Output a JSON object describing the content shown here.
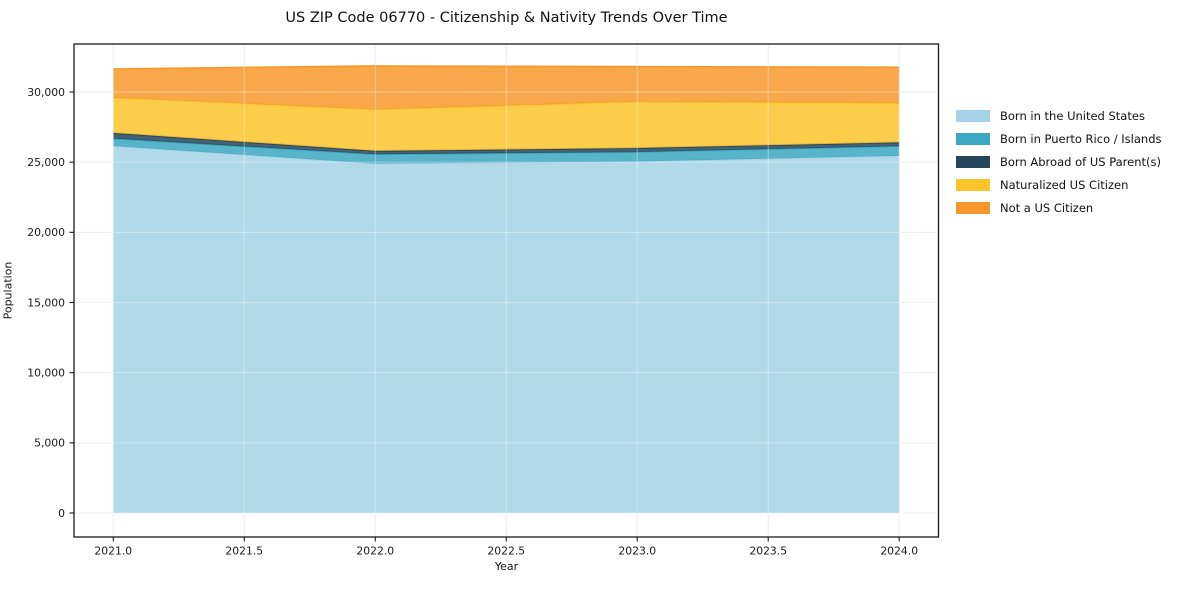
{
  "title": "US ZIP Code 06770 - Citizenship & Nativity Trends Over Time",
  "xlabel": "Year",
  "ylabel": "Population",
  "colors": {
    "background": "#ffffff",
    "grid": "#e7e7e7",
    "axis_frame": "#1a1a1a",
    "tick_text": "#1a1a1a"
  },
  "chart_data": {
    "type": "area",
    "stacked": true,
    "title": "US ZIP Code 06770 - Citizenship & Nativity Trends Over Time",
    "xlabel": "Year",
    "ylabel": "Population",
    "grid": true,
    "legend_position": "right-outside",
    "x": [
      2021,
      2022,
      2023,
      2024
    ],
    "series": [
      {
        "name": "Born in the United States",
        "color": "#a5d2e6",
        "values": [
          26150,
          24900,
          25050,
          25450
        ]
      },
      {
        "name": "Born in Puerto Rico / Islands",
        "color": "#3ba7c0",
        "values": [
          530,
          660,
          670,
          690
        ]
      },
      {
        "name": "Born Abroad of US Parent(s)",
        "color": "#24455c",
        "values": [
          400,
          240,
          285,
          270
        ]
      },
      {
        "name": "Naturalized US Citizen",
        "color": "#fcc32b",
        "values": [
          2520,
          2950,
          3310,
          2790
        ]
      },
      {
        "name": "Not a US Citizen",
        "color": "#f8982c",
        "values": [
          2040,
          3100,
          2490,
          2560
        ]
      }
    ],
    "totals": [
      31640,
      31850,
      31805,
      31760
    ],
    "xlim": [
      2020.85,
      2024.15
    ],
    "ylim": [
      -1710,
      33420
    ],
    "xticks": [
      2021.0,
      2021.5,
      2022.0,
      2022.5,
      2023.0,
      2023.5,
      2024.0
    ],
    "xtick_labels": [
      "2021.0",
      "2021.5",
      "2022.0",
      "2022.5",
      "2023.0",
      "2023.5",
      "2024.0"
    ],
    "yticks": [
      0,
      5000,
      10000,
      15000,
      20000,
      25000,
      30000
    ],
    "ytick_labels": [
      "0",
      "5,000",
      "10,000",
      "15,000",
      "20,000",
      "25,000",
      "30,000"
    ],
    "fill_opacity": 0.85
  }
}
